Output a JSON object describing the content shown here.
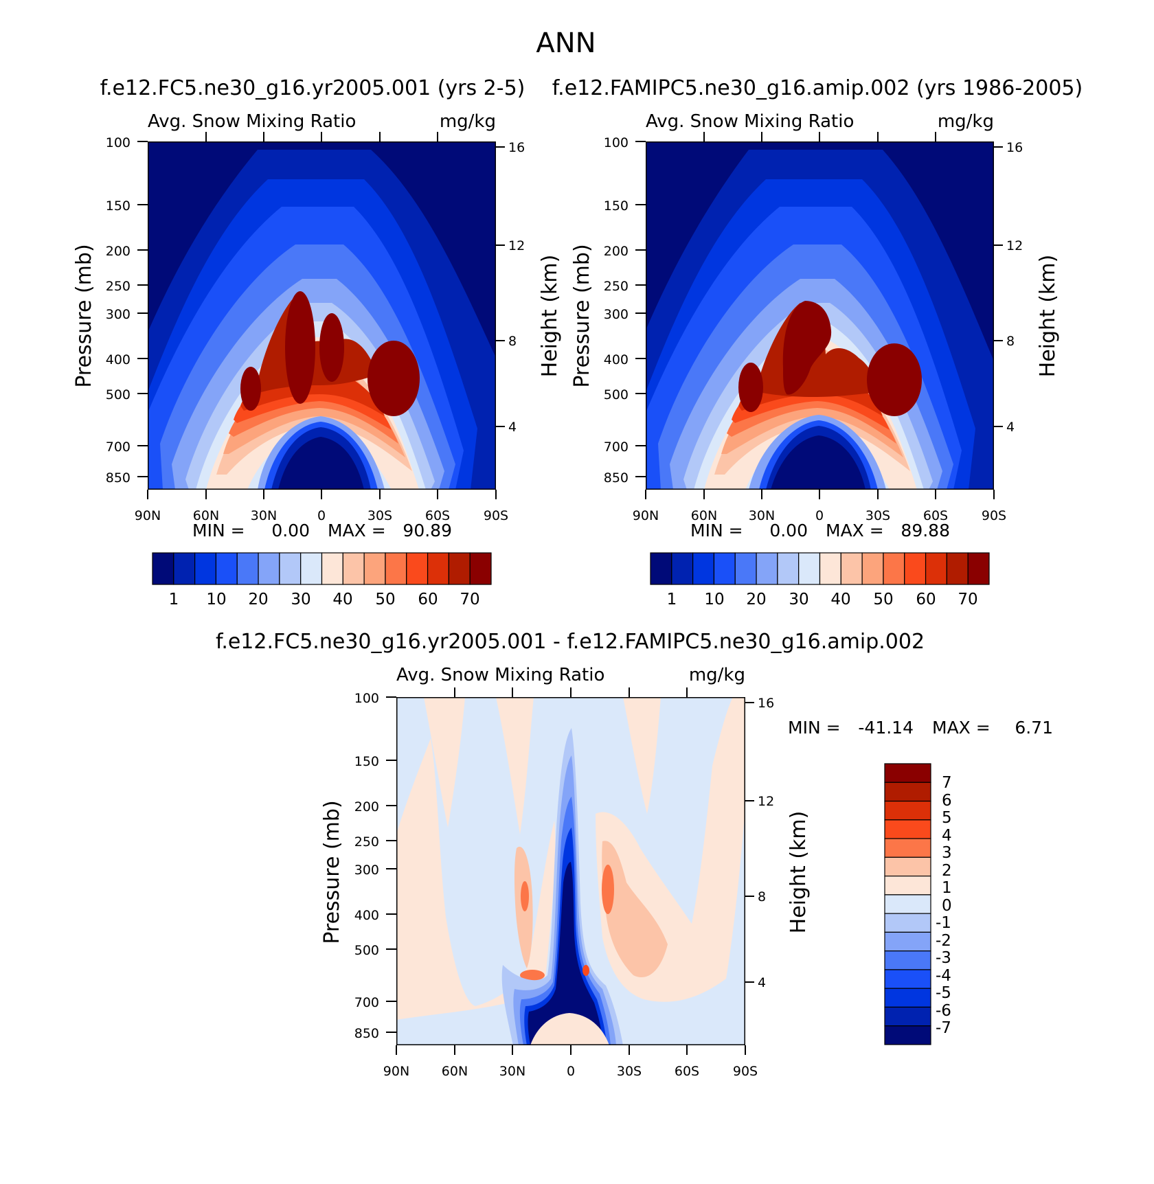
{
  "figure_title": "ANN",
  "colors": {
    "abs": [
      "#000a78",
      "#0022b0",
      "#0036e0",
      "#1a50f8",
      "#4a78f8",
      "#84a4f8",
      "#b2c8f8",
      "#dae8fa",
      "#fde6d8",
      "#fcc4a8",
      "#fca47c",
      "#fc7648",
      "#fa4a1c",
      "#dc3008",
      "#b01c00",
      "#8a0000"
    ],
    "diff": [
      "#000a78",
      "#0022b0",
      "#0036e0",
      "#1a50f8",
      "#4a78f8",
      "#84a4f8",
      "#b2c8f8",
      "#dae8fa",
      "#fde6d8",
      "#fcc4a8",
      "#fc7648",
      "#fa4a1c",
      "#dc3008",
      "#b01c00",
      "#8a0000"
    ]
  },
  "chart_data": [
    {
      "type": "heatmap",
      "title": "f.e12.FC5.ne30_g16.yr2005.001 (yrs 2-5)",
      "left_string": "Avg. Snow Mixing Ratio",
      "right_string": "mg/kg",
      "xlabel": "",
      "ylabel": "Pressure (mb)",
      "ylabel_right": "Height (km)",
      "x_ticks": [
        "90N",
        "60N",
        "30N",
        "0",
        "30S",
        "60S",
        "90S"
      ],
      "y_ticks": [
        "100",
        "150",
        "200",
        "250",
        "300",
        "400",
        "500",
        "700",
        "850"
      ],
      "y_right_ticks": [
        "16",
        "12",
        "8",
        "4"
      ],
      "min_label": "MIN =",
      "min_value": "0.00",
      "max_label": "MAX =",
      "max_value": "90.89",
      "colorbar_labels": [
        "1",
        "10",
        "20",
        "30",
        "40",
        "50",
        "60",
        "70"
      ],
      "colorbar_levels": [
        1,
        5,
        10,
        15,
        20,
        25,
        30,
        35,
        40,
        45,
        50,
        55,
        60,
        65,
        70
      ],
      "ylim": [
        100,
        925
      ],
      "xlim": [
        90,
        -90
      ]
    },
    {
      "type": "heatmap",
      "title": "f.e12.FAMIPC5.ne30_g16.amip.002 (yrs 1986-2005)",
      "left_string": "Avg. Snow Mixing Ratio",
      "right_string": "mg/kg",
      "xlabel": "",
      "ylabel": "Pressure (mb)",
      "ylabel_right": "Height (km)",
      "x_ticks": [
        "90N",
        "60N",
        "30N",
        "0",
        "30S",
        "60S",
        "90S"
      ],
      "y_ticks": [
        "100",
        "150",
        "200",
        "250",
        "300",
        "400",
        "500",
        "700",
        "850"
      ],
      "y_right_ticks": [
        "16",
        "12",
        "8",
        "4"
      ],
      "min_label": "MIN =",
      "min_value": "0.00",
      "max_label": "MAX =",
      "max_value": "89.88",
      "colorbar_labels": [
        "1",
        "10",
        "20",
        "30",
        "40",
        "50",
        "60",
        "70"
      ],
      "colorbar_levels": [
        1,
        5,
        10,
        15,
        20,
        25,
        30,
        35,
        40,
        45,
        50,
        55,
        60,
        65,
        70
      ],
      "ylim": [
        100,
        925
      ],
      "xlim": [
        90,
        -90
      ]
    },
    {
      "type": "heatmap",
      "title": "f.e12.FC5.ne30_g16.yr2005.001 - f.e12.FAMIPC5.ne30_g16.amip.002",
      "left_string": "Avg. Snow Mixing Ratio",
      "right_string": "mg/kg",
      "xlabel": "",
      "ylabel": "Pressure (mb)",
      "ylabel_right": "Height (km)",
      "x_ticks": [
        "90N",
        "60N",
        "30N",
        "0",
        "30S",
        "60S",
        "90S"
      ],
      "y_ticks": [
        "100",
        "150",
        "200",
        "250",
        "300",
        "400",
        "500",
        "700",
        "850"
      ],
      "y_right_ticks": [
        "16",
        "12",
        "8",
        "4"
      ],
      "min_label": "MIN =",
      "min_value": "-41.14",
      "max_label": "MAX =",
      "max_value": "6.71",
      "colorbar_labels": [
        "7",
        "6",
        "5",
        "4",
        "3",
        "2",
        "1",
        "0",
        "-1",
        "-2",
        "-3",
        "-4",
        "-5",
        "-6",
        "-7"
      ],
      "colorbar_levels": [
        -7,
        -6,
        -5,
        -4,
        -3,
        -2,
        -1,
        0,
        1,
        2,
        3,
        4,
        5,
        6,
        7
      ],
      "ylim": [
        100,
        925
      ],
      "xlim": [
        90,
        -90
      ]
    }
  ]
}
